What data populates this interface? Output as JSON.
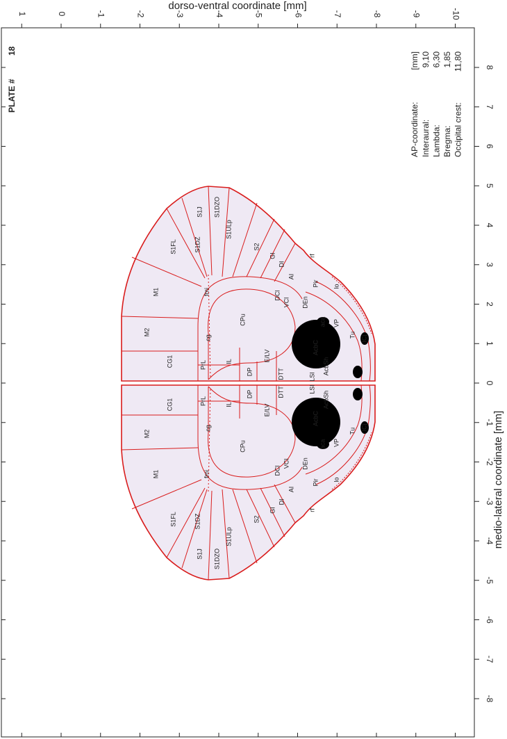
{
  "plate": {
    "label": "PLATE #",
    "number": "18"
  },
  "dv_axis": {
    "title": "dorso-ventral coordinate [mm]",
    "ticks": [
      1,
      0,
      -1,
      -2,
      -3,
      -4,
      -5,
      -6,
      -7,
      -8,
      -9,
      -10
    ]
  },
  "ml_axis": {
    "title": "medio-lateral coordinate [mm]",
    "ticks": [
      8,
      7,
      6,
      5,
      4,
      3,
      2,
      1,
      0,
      -1,
      -2,
      -3,
      -4,
      -5,
      -6,
      -7,
      -8
    ]
  },
  "info": {
    "header": "AP-coordinate:",
    "unit": "[mm]",
    "rows": [
      {
        "label": "Interaural:",
        "value": "9,10"
      },
      {
        "label": "Lambda:",
        "value": "6,30"
      },
      {
        "label": "Bregma:",
        "value": "1,85"
      },
      {
        "label": "Occipital crest:",
        "value": "11,80"
      }
    ]
  },
  "upper_hemisphere_labels": [
    "M1",
    "M2",
    "CG1",
    "PrL",
    "IL",
    "DP",
    "S1FL",
    "S1DZ",
    "S1J",
    "S1DZO",
    "S1ULp",
    "S2",
    "GI",
    "DI",
    "AI",
    "CPu",
    "fmi",
    "cg",
    "E/LV",
    "DCl",
    "VCl",
    "DEn",
    "aca",
    "AcbC",
    "AcbSh",
    "LSI",
    "DTT",
    "VP",
    "Tu",
    "Pir",
    "lo",
    "rf",
    "ICj"
  ],
  "lower_hemisphere_labels": [
    "M1",
    "M2",
    "CG1",
    "PrL",
    "IL",
    "DP",
    "S1FL",
    "S1DZ",
    "S1J",
    "S1DZO",
    "S1ULp",
    "S2",
    "GI",
    "DI",
    "AI",
    "CPu",
    "fmi",
    "cg",
    "E/LV",
    "DCl",
    "VCl",
    "DEn",
    "aca",
    "AcbC",
    "AcbSh",
    "LSI",
    "DTT",
    "VP",
    "Tu",
    "Pir",
    "lo",
    "rf",
    "ICj"
  ]
}
